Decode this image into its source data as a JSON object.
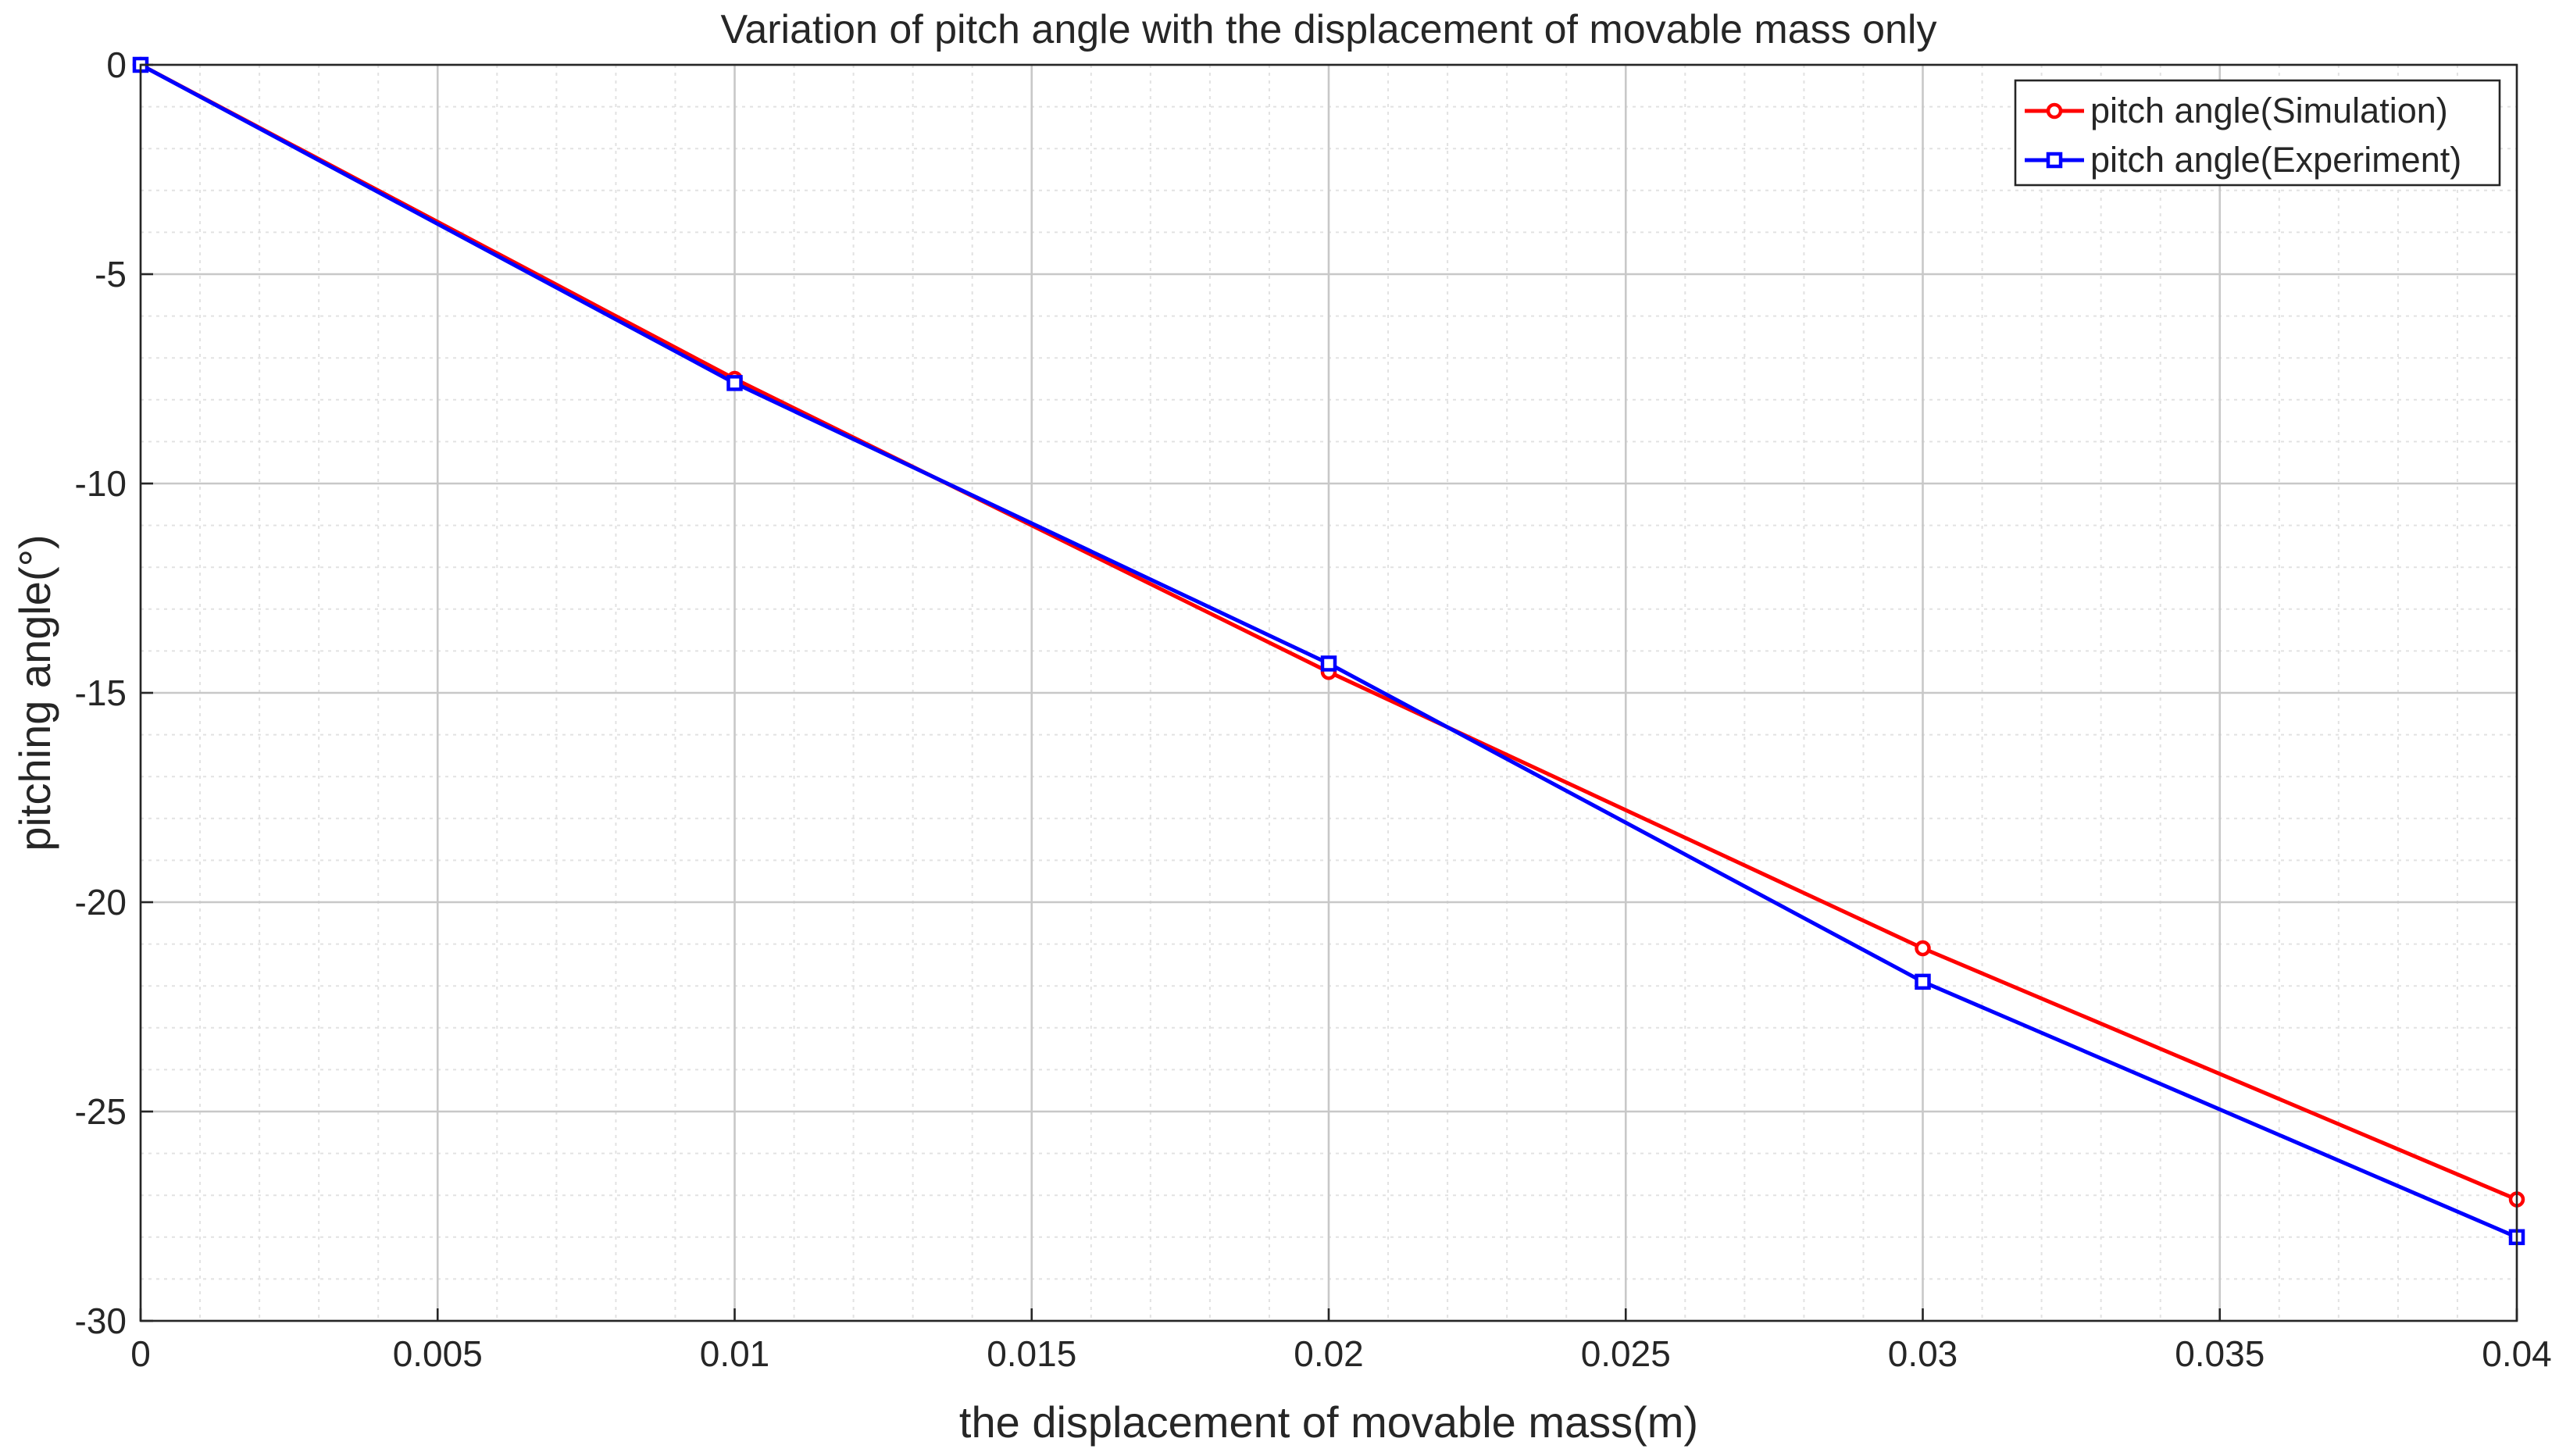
{
  "chart_data": {
    "type": "line",
    "title": "Variation of pitch angle with the displacement of movable mass only",
    "xlabel": "the displacement of movable mass(m)",
    "ylabel": "pitching angle(°)",
    "xlim": [
      0,
      0.04
    ],
    "ylim": [
      -30,
      0
    ],
    "grid": true,
    "minor_grid": true,
    "legend_position": "top-right",
    "x_ticks": [
      0,
      0.005,
      0.01,
      0.015,
      0.02,
      0.025,
      0.03,
      0.035,
      0.04
    ],
    "x_tick_labels": [
      "0",
      "0.005",
      "0.01",
      "0.015",
      "0.02",
      "0.025",
      "0.03",
      "0.035",
      "0.04"
    ],
    "y_ticks": [
      0,
      -5,
      -10,
      -15,
      -20,
      -25,
      -30
    ],
    "y_tick_labels": [
      "0",
      "-5",
      "-10",
      "-15",
      "-20",
      "-25",
      "-30"
    ],
    "x": [
      0,
      0.01,
      0.02,
      0.03,
      0.04
    ],
    "series": [
      {
        "name": "pitch angle(Simulation)",
        "color": "#ff0000",
        "marker": "circle",
        "values": [
          0,
          -7.5,
          -14.5,
          -21.1,
          -27.1
        ]
      },
      {
        "name": "pitch angle(Experiment)",
        "color": "#0000ff",
        "marker": "square",
        "values": [
          0,
          -7.6,
          -14.3,
          -21.9,
          -28.0
        ]
      }
    ]
  }
}
